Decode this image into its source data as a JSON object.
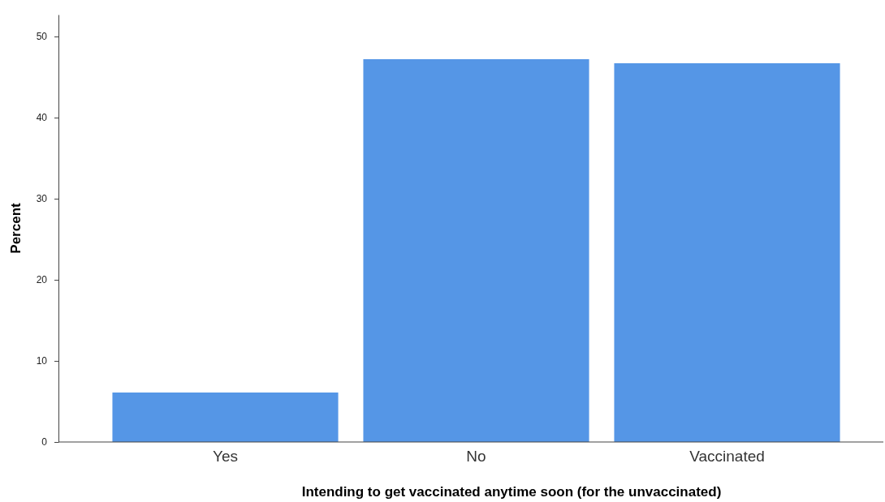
{
  "chart_data": {
    "type": "bar",
    "xlabel": "Intending to get vaccinated anytime soon (for the unvaccinated)",
    "ylabel": "Percent",
    "categories": [
      "Yes",
      "No",
      "Vaccinated"
    ],
    "values": [
      6.1,
      47.2,
      46.7
    ],
    "color": "#5596e6",
    "ylim": [
      0,
      52.7
    ],
    "yticks": [
      0,
      10,
      20,
      30,
      40,
      50
    ],
    "grid": false
  }
}
